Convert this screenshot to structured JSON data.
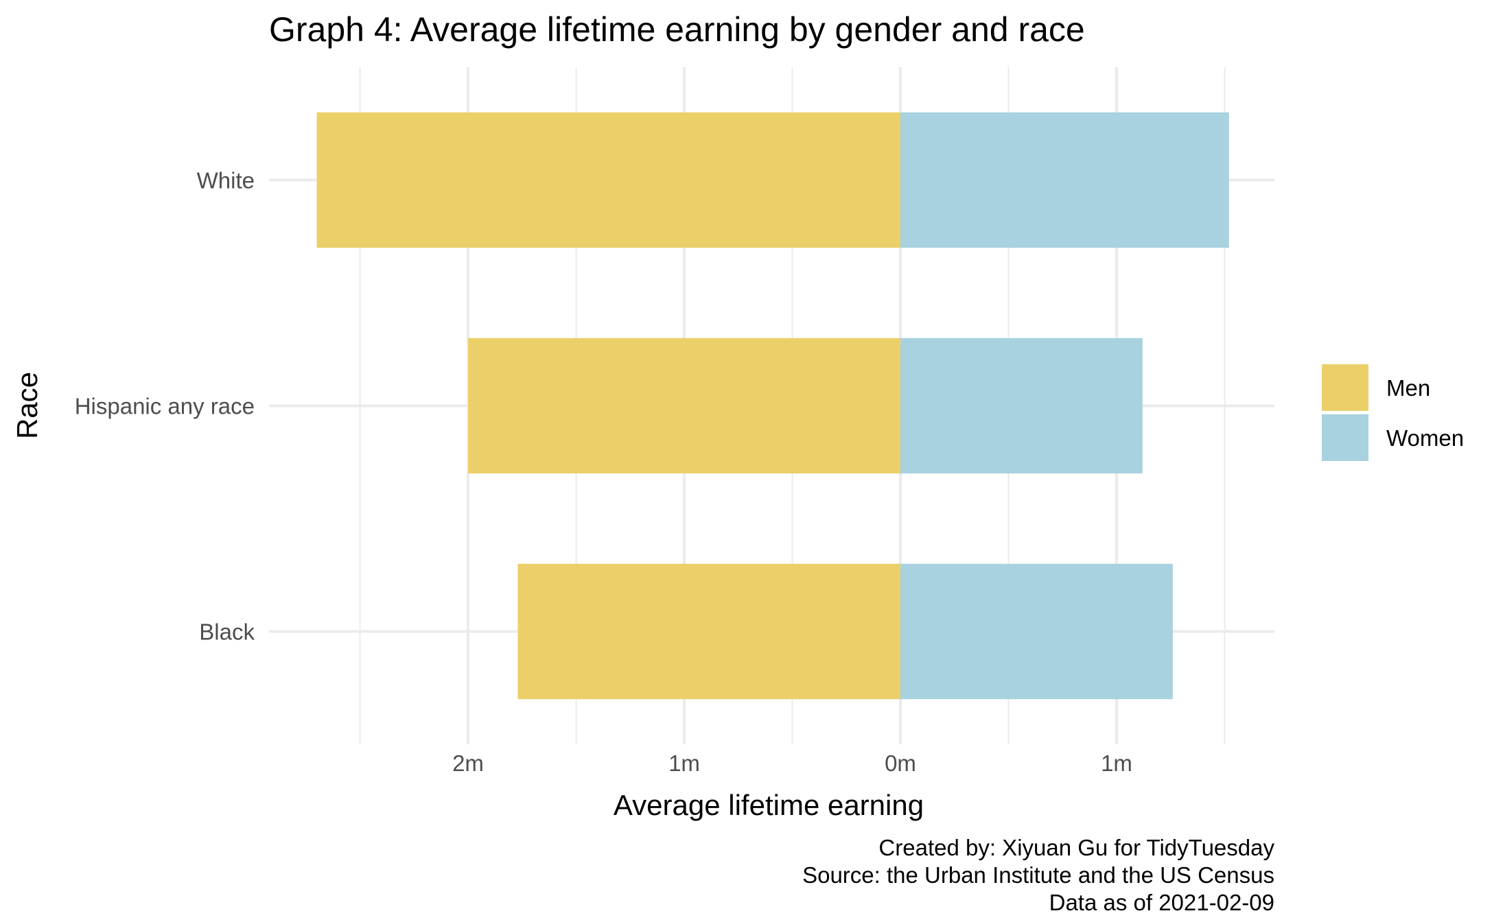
{
  "chart_data": {
    "type": "bar",
    "orientation": "horizontal-diverging",
    "title": "Graph 4: Average lifetime earning by gender and race",
    "xlabel": "Average lifetime earning",
    "ylabel": "Race",
    "categories": [
      "White",
      "Hispanic any race",
      "Black"
    ],
    "series": [
      {
        "name": "Men",
        "values": [
          2700000,
          2000000,
          1770000
        ],
        "color": "#EBD06A",
        "direction": "left"
      },
      {
        "name": "Women",
        "values": [
          1520000,
          1120000,
          1260000
        ],
        "color": "#A8D2DF",
        "direction": "right"
      }
    ],
    "xlim": [
      -2.5,
      1.5
    ],
    "x_unit": "millions",
    "x_ticks": [
      {
        "value": -2,
        "label": "2m"
      },
      {
        "value": -1,
        "label": "1m"
      },
      {
        "value": 0,
        "label": "0m"
      },
      {
        "value": 1,
        "label": "1m"
      }
    ],
    "x_minor_gridlines": [
      -2.5,
      -1.5,
      -0.5,
      0.5,
      1.5
    ],
    "grid": true,
    "legend_position": "right",
    "caption": [
      "Created by: Xiyuan Gu for TidyTuesday",
      "Source: the Urban Institute and the US Census",
      "Data as of 2021-02-09"
    ],
    "colors": {
      "gridline": "#EBEBEB",
      "tick_label": "#4D4D4D",
      "text": "#000000",
      "background": "#FFFFFF"
    }
  }
}
